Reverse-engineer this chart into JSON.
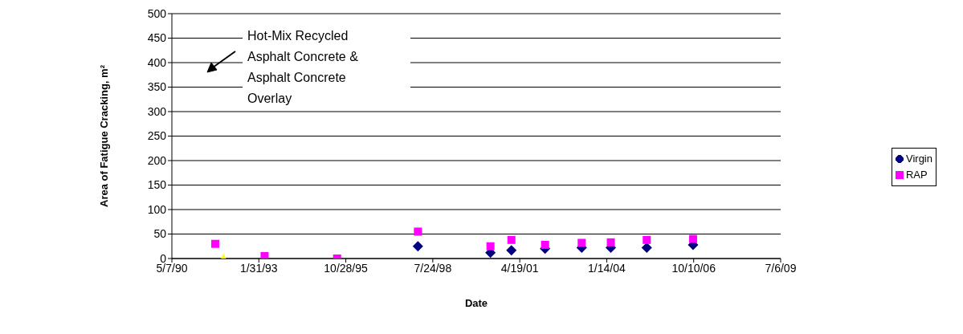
{
  "chart_data": {
    "type": "scatter",
    "xlabel": "Date",
    "ylabel": "Area of Fatigue Cracking, m²",
    "annotations": [
      "Hot-Mix Recycled Asphalt Concrete & Asphalt Concrete Overlay"
    ],
    "xlim": [
      "1990-05-07",
      "2009-07-06"
    ],
    "xticks": [
      {
        "value": "1990-05-07",
        "label": "5/7/90"
      },
      {
        "value": "1993-01-31",
        "label": "1/31/93"
      },
      {
        "value": "1995-10-28",
        "label": "10/28/95"
      },
      {
        "value": "1998-07-24",
        "label": "7/24/98"
      },
      {
        "value": "2001-04-19",
        "label": "4/19/01"
      },
      {
        "value": "2004-01-14",
        "label": "1/14/04"
      },
      {
        "value": "2006-10-10",
        "label": "10/10/06"
      },
      {
        "value": "2009-07-06",
        "label": "7/6/09"
      }
    ],
    "ylim": [
      0,
      500
    ],
    "yticks": [
      0,
      50,
      100,
      150,
      200,
      250,
      300,
      350,
      400,
      450,
      500
    ],
    "grid": "y",
    "legend": "right",
    "series": [
      {
        "name": "Virgin",
        "color": "#000080",
        "marker": "diamond",
        "x": [
          "1998-02-03",
          "2000-05-17",
          "2001-01-13",
          "2002-02-04",
          "2003-04-01",
          "2004-03-01",
          "2005-04-18",
          "2006-10-03"
        ],
        "values": [
          25,
          12,
          17,
          20,
          22,
          22,
          22,
          28
        ]
      },
      {
        "name": "RAP",
        "color": "#ff00ff",
        "marker": "square",
        "x": [
          "1991-09-18",
          "1993-04-07",
          "1995-07-20",
          "1998-02-03",
          "2000-05-17",
          "2001-01-13",
          "2002-02-04",
          "2003-04-01",
          "2004-03-01",
          "2005-04-18",
          "2006-10-03"
        ],
        "values": [
          30,
          5,
          0,
          55,
          25,
          38,
          28,
          32,
          33,
          38,
          40
        ]
      },
      {
        "color": "#ffff00",
        "marker": "triangle",
        "x": [
          "1991-12-21"
        ],
        "values": [
          0
        ]
      }
    ]
  }
}
